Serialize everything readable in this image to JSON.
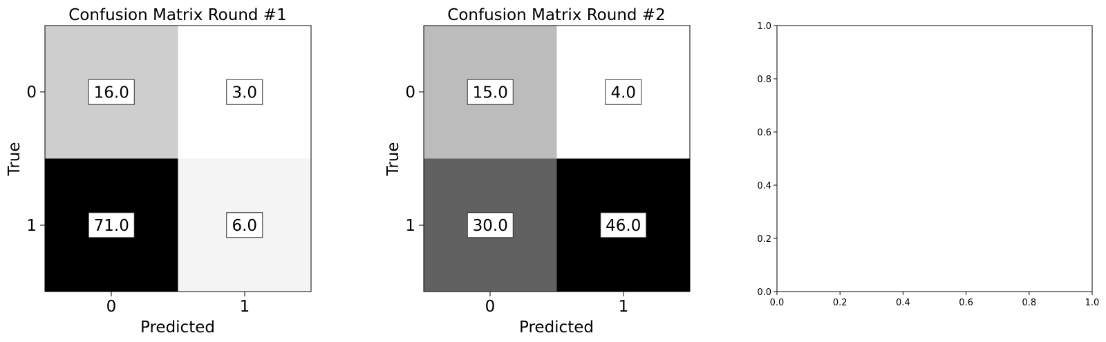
{
  "chart_data": [
    {
      "type": "heatmap",
      "title": "Confusion Matrix Round #1",
      "xlabel": "Predicted",
      "ylabel": "True",
      "x_categories": [
        "0",
        "1"
      ],
      "y_categories": [
        "0",
        "1"
      ],
      "values": [
        [
          16.0,
          3.0
        ],
        [
          71.0,
          6.0
        ]
      ],
      "labels": [
        [
          "16.0",
          "3.0"
        ],
        [
          "71.0",
          "6.0"
        ]
      ],
      "colormap": "Greys",
      "grid": false
    },
    {
      "type": "heatmap",
      "title": "Confusion Matrix Round #2",
      "xlabel": "Predicted",
      "ylabel": "True",
      "x_categories": [
        "0",
        "1"
      ],
      "y_categories": [
        "0",
        "1"
      ],
      "values": [
        [
          15.0,
          4.0
        ],
        [
          30.0,
          46.0
        ]
      ],
      "labels": [
        [
          "15.0",
          "4.0"
        ],
        [
          "30.0",
          "46.0"
        ]
      ],
      "colormap": "Greys",
      "grid": false
    },
    {
      "type": "scatter",
      "title": "",
      "xlabel": "",
      "ylabel": "",
      "xlim": [
        0.0,
        1.0
      ],
      "ylim": [
        0.0,
        1.0
      ],
      "xticks": [
        "0.0",
        "0.2",
        "0.4",
        "0.6",
        "0.8",
        "1.0"
      ],
      "yticks": [
        "0.0",
        "0.2",
        "0.4",
        "0.6",
        "0.8",
        "1.0"
      ],
      "series": [],
      "grid": false
    }
  ]
}
